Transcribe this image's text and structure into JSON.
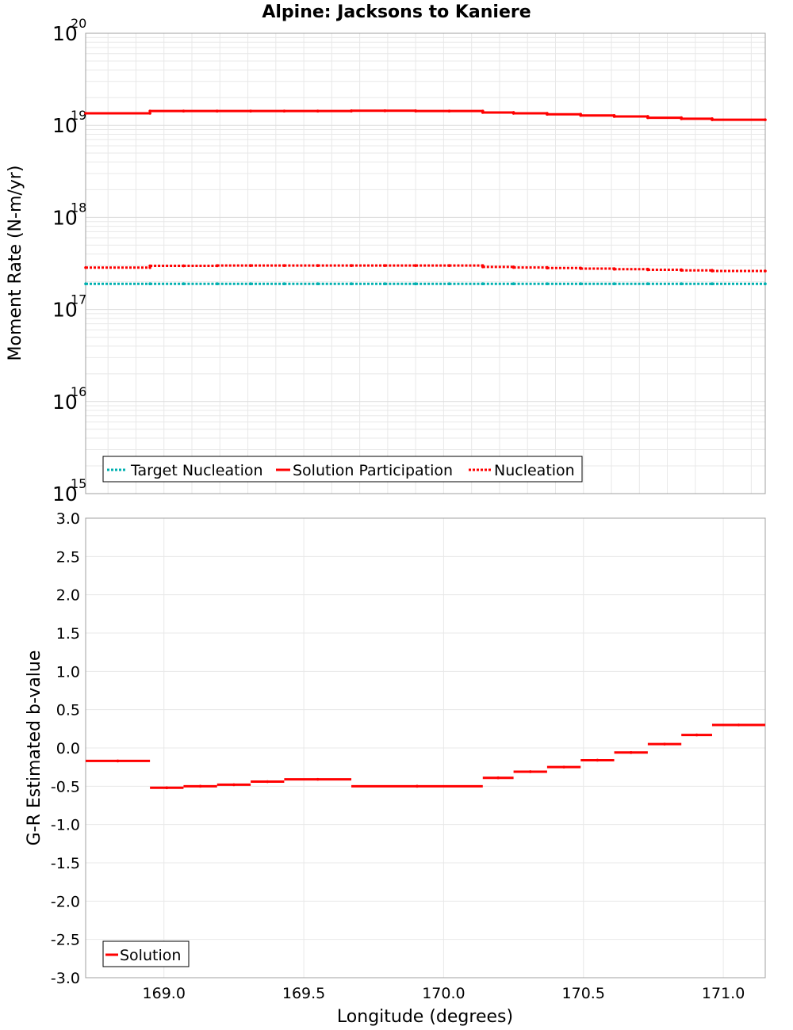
{
  "title": "Alpine: Jacksons to Kaniere",
  "colors": {
    "solution": "#ff0000",
    "target": "#00b0b0",
    "grid": "#e8e8e8",
    "frame": "#a0a0a0"
  },
  "chart_data": [
    {
      "type": "line",
      "name": "moment-rate",
      "yscale": "log",
      "ylabel": "Moment Rate (N-m/yr)",
      "xlim": [
        168.72,
        171.15
      ],
      "ylim_exp": [
        15,
        20
      ],
      "ytick_base": "10",
      "ytick_exponents": [
        "15",
        "16",
        "17",
        "18",
        "19",
        "20"
      ],
      "legend": [
        "Target Nucleation",
        "Solution Participation",
        "Nucleation"
      ],
      "legend_position": "bottom-left",
      "segments_x": [
        [
          168.72,
          168.95
        ],
        [
          168.95,
          169.07
        ],
        [
          169.07,
          169.19
        ],
        [
          169.19,
          169.31
        ],
        [
          169.31,
          169.43
        ],
        [
          169.43,
          169.55
        ],
        [
          169.55,
          169.67
        ],
        [
          169.67,
          169.79
        ],
        [
          169.79,
          169.9
        ],
        [
          169.9,
          170.02
        ],
        [
          170.02,
          170.14
        ],
        [
          170.14,
          170.25
        ],
        [
          170.25,
          170.37
        ],
        [
          170.37,
          170.49
        ],
        [
          170.49,
          170.61
        ],
        [
          170.61,
          170.73
        ],
        [
          170.73,
          170.85
        ],
        [
          170.85,
          170.96
        ],
        [
          170.96,
          171.15
        ]
      ],
      "series": [
        {
          "name": "Target Nucleation",
          "style": "dotted",
          "values": [
            1.9e+17,
            1.9e+17,
            1.9e+17,
            1.9e+17,
            1.9e+17,
            1.9e+17,
            1.9e+17,
            1.9e+17,
            1.9e+17,
            1.9e+17,
            1.9e+17,
            1.9e+17,
            1.9e+17,
            1.9e+17,
            1.9e+17,
            1.9e+17,
            1.9e+17,
            1.9e+17,
            1.9e+17
          ]
        },
        {
          "name": "Solution Participation",
          "style": "solid",
          "values": [
            1.35e+19,
            1.43e+19,
            1.43e+19,
            1.43e+19,
            1.43e+19,
            1.43e+19,
            1.43e+19,
            1.44e+19,
            1.44e+19,
            1.43e+19,
            1.43e+19,
            1.38e+19,
            1.35e+19,
            1.32e+19,
            1.28e+19,
            1.25e+19,
            1.21e+19,
            1.18e+19,
            1.15e+19
          ]
        },
        {
          "name": "Nucleation",
          "style": "dotted",
          "values": [
            2.85e+17,
            2.98e+17,
            2.98e+17,
            3e+17,
            3e+17,
            3e+17,
            3e+17,
            3e+17,
            3e+17,
            3e+17,
            3e+17,
            2.9e+17,
            2.86e+17,
            2.82e+17,
            2.78e+17,
            2.74e+17,
            2.7e+17,
            2.66e+17,
            2.62e+17
          ]
        }
      ]
    },
    {
      "type": "line",
      "name": "b-value",
      "xlabel": "Longitude (degrees)",
      "ylabel": "G-R Estimated b-value",
      "xlim": [
        168.72,
        171.15
      ],
      "ylim": [
        -3.0,
        3.0
      ],
      "xticks": [
        "169.0",
        "169.5",
        "170.0",
        "170.5",
        "171.0"
      ],
      "yticks": [
        "3.0",
        "2.5",
        "2.0",
        "1.5",
        "1.0",
        "0.5",
        "0.0",
        "-0.5",
        "-1.0",
        "-1.5",
        "-2.0",
        "-2.5",
        "-3.0"
      ],
      "legend": [
        "Solution"
      ],
      "legend_position": "bottom-left",
      "segments": [
        {
          "x": [
            168.72,
            168.95
          ],
          "y": -0.17
        },
        {
          "x": [
            168.95,
            169.07
          ],
          "y": -0.52
        },
        {
          "x": [
            169.07,
            169.19
          ],
          "y": -0.5
        },
        {
          "x": [
            169.19,
            169.31
          ],
          "y": -0.48
        },
        {
          "x": [
            169.31,
            169.43
          ],
          "y": -0.44
        },
        {
          "x": [
            169.43,
            169.67
          ],
          "y": -0.41
        },
        {
          "x": [
            169.67,
            170.14
          ],
          "y": -0.5
        },
        {
          "x": [
            170.14,
            170.25
          ],
          "y": -0.39
        },
        {
          "x": [
            170.25,
            170.37
          ],
          "y": -0.31
        },
        {
          "x": [
            170.37,
            170.49
          ],
          "y": -0.25
        },
        {
          "x": [
            170.49,
            170.61
          ],
          "y": -0.16
        },
        {
          "x": [
            170.61,
            170.73
          ],
          "y": -0.06
        },
        {
          "x": [
            170.73,
            170.85
          ],
          "y": 0.05
        },
        {
          "x": [
            170.85,
            170.96
          ],
          "y": 0.17
        },
        {
          "x": [
            170.96,
            171.15
          ],
          "y": 0.3
        }
      ]
    }
  ]
}
